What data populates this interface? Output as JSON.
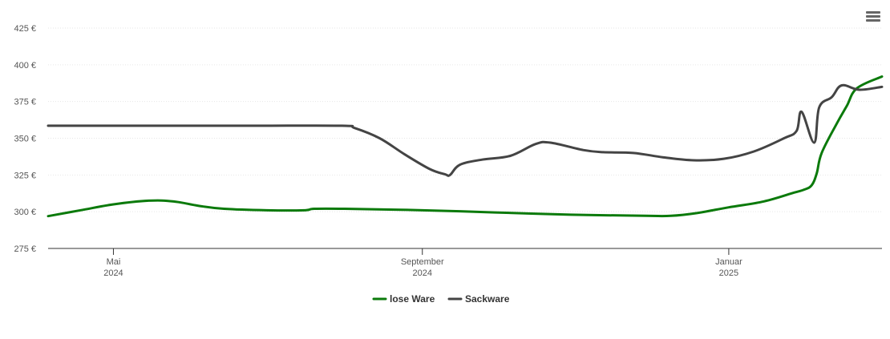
{
  "menu": {
    "icon": "hamburger-menu-icon"
  },
  "chart_data": {
    "type": "line",
    "y_ticks": [
      "275 €",
      "300 €",
      "325 €",
      "350 €",
      "375 €",
      "400 €",
      "425 €"
    ],
    "ylim": [
      275,
      425
    ],
    "x_ticks": [
      {
        "month": "Mai",
        "year": "2024",
        "date": "2024-05-01"
      },
      {
        "month": "September",
        "year": "2024",
        "date": "2024-09-01"
      },
      {
        "month": "Januar",
        "year": "2025",
        "date": "2025-01-01"
      }
    ],
    "xlim": [
      "2024-04-05",
      "2025-03-03"
    ],
    "grid": true,
    "legend_position": "bottom-center",
    "series": [
      {
        "name": "lose Ware",
        "color": "#0b7a0b",
        "points": [
          [
            "2024-04-05",
            297
          ],
          [
            "2024-04-18",
            301
          ],
          [
            "2024-05-01",
            305
          ],
          [
            "2024-05-15",
            307.5
          ],
          [
            "2024-05-25",
            307
          ],
          [
            "2024-06-04",
            304
          ],
          [
            "2024-06-14",
            302
          ],
          [
            "2024-07-01",
            301
          ],
          [
            "2024-07-16",
            301
          ],
          [
            "2024-07-20",
            302
          ],
          [
            "2024-08-01",
            302
          ],
          [
            "2024-09-01",
            301
          ],
          [
            "2024-09-30",
            299.5
          ],
          [
            "2024-10-30",
            298
          ],
          [
            "2024-11-29",
            297.2
          ],
          [
            "2024-12-09",
            297.2
          ],
          [
            "2024-12-19",
            299
          ],
          [
            "2025-01-01",
            303
          ],
          [
            "2025-01-15",
            307
          ],
          [
            "2025-01-27",
            313
          ],
          [
            "2025-01-31",
            315
          ],
          [
            "2025-02-03",
            318
          ],
          [
            "2025-02-05",
            326
          ],
          [
            "2025-02-07",
            340
          ],
          [
            "2025-02-13",
            360
          ],
          [
            "2025-02-17",
            372
          ],
          [
            "2025-02-21",
            384
          ],
          [
            "2025-03-03",
            392
          ]
        ]
      },
      {
        "name": "Sackware",
        "color": "#444444",
        "points": [
          [
            "2024-04-05",
            358.5
          ],
          [
            "2024-05-15",
            358.5
          ],
          [
            "2024-06-25",
            358.5
          ],
          [
            "2024-07-31",
            358.5
          ],
          [
            "2024-08-05",
            357
          ],
          [
            "2024-08-15",
            350
          ],
          [
            "2024-08-25",
            339
          ],
          [
            "2024-09-04",
            329
          ],
          [
            "2024-09-10",
            325.5
          ],
          [
            "2024-09-12",
            325
          ],
          [
            "2024-09-16",
            332
          ],
          [
            "2024-09-25",
            335.5
          ],
          [
            "2024-10-06",
            338
          ],
          [
            "2024-10-16",
            346
          ],
          [
            "2024-10-22",
            347
          ],
          [
            "2024-11-04",
            342
          ],
          [
            "2024-11-12",
            340.5
          ],
          [
            "2024-11-24",
            340
          ],
          [
            "2024-12-06",
            337
          ],
          [
            "2024-12-18",
            335
          ],
          [
            "2024-12-30",
            336
          ],
          [
            "2025-01-11",
            341
          ],
          [
            "2025-01-23",
            350
          ],
          [
            "2025-01-28",
            355
          ],
          [
            "2025-01-30",
            368
          ],
          [
            "2025-02-04",
            347
          ],
          [
            "2025-02-06",
            371
          ],
          [
            "2025-02-11",
            378
          ],
          [
            "2025-02-15",
            386
          ],
          [
            "2025-02-22",
            383
          ],
          [
            "2025-03-03",
            385
          ]
        ]
      }
    ]
  }
}
